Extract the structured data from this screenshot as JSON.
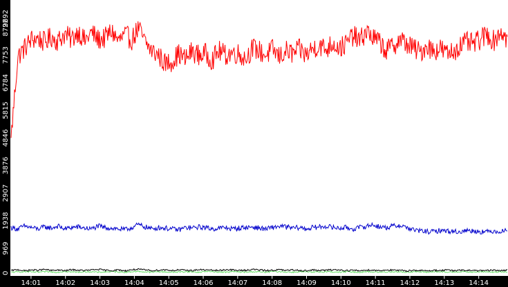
{
  "chart_data": {
    "type": "line",
    "title": "",
    "xlabel": "",
    "ylabel": "",
    "ylim": [
      0,
      9692
    ],
    "y_ticks": [
      "0",
      "969",
      "1938",
      "2907",
      "3876",
      "4846",
      "5815",
      "6784",
      "7753",
      "8722",
      "9692"
    ],
    "x_ticks": [
      "14:01",
      "14:02",
      "14:03",
      "14:04",
      "14:05",
      "14:06",
      "14:07",
      "14:08",
      "14:09",
      "14:10",
      "14:11",
      "14:12",
      "14:13",
      "14:14"
    ],
    "x_minutes": {
      "start": 14.0,
      "end": 14.9,
      "unit": "minute after 14:00",
      "first_tick": 1,
      "last_tick": 14,
      "range": [
        0.4,
        14.85
      ]
    },
    "series": [
      {
        "color": "#ff0000",
        "values": [
          4846,
          7700,
          8000,
          8300,
          8350,
          8200,
          8400,
          8250,
          8500,
          8300,
          8600,
          8250,
          8550,
          8300,
          8350,
          8600,
          8250,
          8450,
          8300,
          8700,
          8200,
          7900,
          7750,
          7450,
          7550,
          7800,
          7600,
          7900,
          7750,
          7800,
          7600,
          7900,
          7750,
          7850,
          7800,
          7650,
          8000,
          7900,
          7750,
          7950,
          7700,
          7900,
          7800,
          7950,
          7750,
          8000,
          8100,
          7950,
          8200,
          8000,
          8150,
          8450,
          8250,
          8600,
          8350,
          8200,
          7900,
          8100,
          8300,
          8150,
          8000,
          7850,
          8100,
          7900,
          8000,
          7800,
          7900,
          8100,
          8200,
          8150,
          8300,
          8500,
          8250,
          8600,
          8300
        ]
      },
      {
        "color": "#0000cc",
        "values": [
          1700,
          1650,
          1750,
          1700,
          1650,
          1720,
          1680,
          1750,
          1650,
          1700,
          1720,
          1680,
          1650,
          1750,
          1700,
          1680,
          1650,
          1620,
          1700,
          1800,
          1720,
          1650,
          1700,
          1680,
          1650,
          1620,
          1700,
          1680,
          1720,
          1700,
          1650,
          1680,
          1700,
          1650,
          1680,
          1700,
          1720,
          1680,
          1650,
          1700,
          1750,
          1720,
          1680,
          1700,
          1650,
          1700,
          1720,
          1750,
          1700,
          1680,
          1700,
          1650,
          1700,
          1750,
          1800,
          1720,
          1700,
          1750,
          1780,
          1700,
          1620,
          1580,
          1560,
          1550,
          1600,
          1580,
          1560,
          1550,
          1600,
          1580,
          1560,
          1550,
          1580,
          1560,
          1600
        ]
      },
      {
        "color": "#66dd66",
        "values": [
          130,
          140,
          150,
          140,
          130,
          150,
          140,
          130,
          160,
          140,
          130,
          150,
          145,
          130,
          140,
          150,
          140,
          130,
          150,
          160,
          140,
          130,
          150,
          140,
          130,
          140,
          150,
          140,
          130,
          160,
          150,
          140,
          130,
          150,
          140,
          130,
          150,
          140,
          130,
          160,
          150,
          140,
          130,
          150,
          140,
          130,
          140,
          150,
          140,
          130,
          150,
          140,
          130,
          150,
          140,
          130,
          140,
          150,
          140,
          130,
          150,
          140,
          130,
          150,
          140,
          130,
          140,
          150,
          140,
          130,
          150,
          140,
          130,
          150,
          140
        ]
      },
      {
        "color": "#000000",
        "values": [
          190,
          220,
          180,
          210,
          200,
          230,
          190,
          210,
          180,
          220,
          200,
          190,
          210,
          230,
          200,
          190,
          210,
          180,
          220,
          230,
          210,
          190,
          200,
          220,
          190,
          210,
          200,
          190,
          220,
          210,
          200,
          190,
          220,
          210,
          190,
          200,
          230,
          210,
          190,
          200,
          220,
          190,
          210,
          200,
          180,
          210,
          190,
          200,
          220,
          210,
          190,
          200,
          180,
          210,
          200,
          190,
          210,
          200,
          190,
          180,
          200,
          190,
          180,
          200,
          190,
          210,
          180,
          200,
          190,
          200,
          180,
          190,
          200,
          190,
          200
        ]
      }
    ],
    "grid": false,
    "legend": "none",
    "background": "#ffffff",
    "frame": "#000000"
  }
}
